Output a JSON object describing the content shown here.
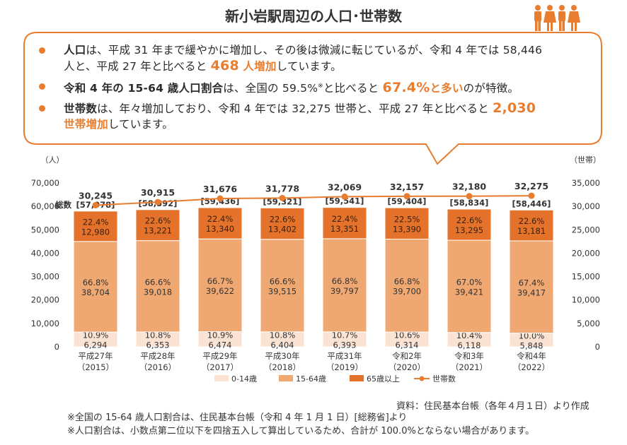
{
  "header": {
    "title": "新小岩駅周辺の人口･世帯数"
  },
  "summary": {
    "b1": {
      "bold": "人口",
      "t1": "は、平成 31 年まで緩やかに増加し、その後は微減に転じているが、令和 4 年では 58,446",
      "t2": "人と、平成 27 年と比べると",
      "num": "468",
      "unit": " 人増加",
      "t3": "しています。"
    },
    "b2": {
      "bold": "令和 4 年の 15-64 歳人口割合",
      "t1": "は、全国の 59.5%",
      "sup": "※",
      "t2": "と比べると",
      "num": "67.4%",
      "unit": "と多い",
      "t3": "のが特徴。"
    },
    "b3": {
      "bold": "世帯数",
      "t1": "は、年々増加しており、令和 4 年では 32,275 世帯と、平成 27 年と比べると",
      "num": "2,030",
      "unit": "世帯増加",
      "t3": "しています。"
    }
  },
  "chart_data": {
    "type": "bar",
    "stacked": true,
    "title": "新小岩駅周辺の人口･世帯数",
    "categories": [
      [
        "平成27年",
        "（2015）"
      ],
      [
        "平成28年",
        "（2016）"
      ],
      [
        "平成29年",
        "（2017）"
      ],
      [
        "平成30年",
        "（2018）"
      ],
      [
        "平成31年",
        "（2019）"
      ],
      [
        "令和2年",
        "（2020）"
      ],
      [
        "令和3年",
        "（2021）"
      ],
      [
        "令和4年",
        "（2022）"
      ]
    ],
    "series": [
      {
        "name": "0-14歳",
        "color": "#fbe3d3",
        "values": [
          6294,
          6353,
          6474,
          6404,
          6393,
          6314,
          6118,
          5848
        ],
        "value_labels": [
          "6,294",
          "6,353",
          "6,474",
          "6,404",
          "6,393",
          "6,314",
          "6,118",
          "5,848"
        ],
        "pct_labels": [
          "10.9%",
          "10.8%",
          "10.9%",
          "10.8%",
          "10.7%",
          "10.6%",
          "10.4%",
          "10.0%"
        ]
      },
      {
        "name": "15-64歳",
        "color": "#f0a872",
        "values": [
          38704,
          39018,
          39622,
          39515,
          39797,
          39700,
          39421,
          39417
        ],
        "value_labels": [
          "38,704",
          "39,018",
          "39,622",
          "39,515",
          "39,797",
          "39,700",
          "39,421",
          "39,417"
        ],
        "pct_labels": [
          "66.8%",
          "66.6%",
          "66.7%",
          "66.6%",
          "66.8%",
          "66.8%",
          "67.0%",
          "67.4%"
        ]
      },
      {
        "name": "65歳以上",
        "color": "#e4722b",
        "values": [
          12980,
          13221,
          13340,
          13402,
          13351,
          13390,
          13295,
          13181
        ],
        "value_labels": [
          "12,980",
          "13,221",
          "13,340",
          "13,402",
          "13,351",
          "13,390",
          "13,295",
          "13,181"
        ],
        "pct_labels": [
          "22.4%",
          "22.6%",
          "22.4%",
          "22.6%",
          "22.4%",
          "22.5%",
          "22.6%",
          "22.6%"
        ]
      }
    ],
    "totals": [
      57978,
      58592,
      59436,
      59321,
      59541,
      59404,
      58834,
      58446
    ],
    "total_labels": [
      "[57,978]",
      "[58,592]",
      "[59,436]",
      "[59,321]",
      "[59,541]",
      "[59,404]",
      "[58,834]",
      "[58,446]"
    ],
    "total_prefix": "総数",
    "households": {
      "name": "世帯数",
      "color": "#e87d2f",
      "values": [
        30245,
        30915,
        31676,
        31778,
        32069,
        32157,
        32180,
        32275
      ],
      "labels": [
        "30,245",
        "30,915",
        "31,676",
        "31,778",
        "32,069",
        "32,157",
        "32,180",
        "32,275"
      ]
    },
    "y_left": {
      "unit": "（人）",
      "min": 0,
      "max": 70000,
      "step": 10000,
      "ticks": [
        "0",
        "10,000",
        "20,000",
        "30,000",
        "40,000",
        "50,000",
        "60,000",
        "70,000"
      ]
    },
    "y_right": {
      "unit": "（世帯）",
      "min": 0,
      "max": 35000,
      "step": 5000,
      "ticks": [
        "0",
        "5,000",
        "10,000",
        "15,000",
        "20,000",
        "25,000",
        "30,000",
        "35,000"
      ]
    },
    "legend_position": "bottom",
    "grid": false
  },
  "footer": {
    "source": "資料：住民基本台帳（各年４月１日）より作成",
    "note1": "※全国の 15-64 歳人口割合は、住民基本台帳（令和 4 年 1 月 1 日）[総務省]より",
    "note2": "※人口割合は、小数点第二位以下を四捨五入して算出しているため、合計が 100.0%とならない場合があります。"
  }
}
